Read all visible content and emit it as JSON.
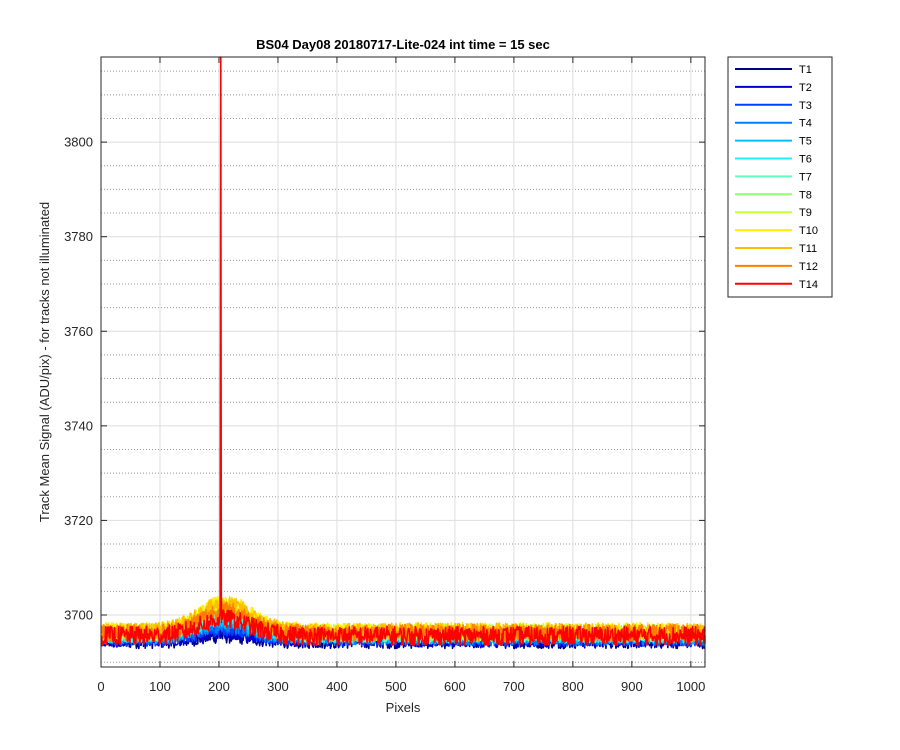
{
  "chart_data": {
    "type": "line",
    "title": "BS04 Day08 20180717-Lite-024 int time = 15 sec",
    "xlabel": "Pixels",
    "ylabel": "Track Mean Signal (ADU/pix) - for tracks not illuminated",
    "xlim": [
      0,
      1024
    ],
    "ylim": [
      3689,
      3818
    ],
    "x_ticks": [
      0,
      100,
      200,
      300,
      400,
      500,
      600,
      700,
      800,
      900,
      1000
    ],
    "y_ticks": [
      3700,
      3720,
      3740,
      3760,
      3780,
      3800
    ],
    "grid": "on (major solid, minor dotted)",
    "legend_position": "outside-right",
    "series": [
      {
        "name": "T1",
        "color": "#00008f",
        "baseline": 3694.5,
        "noise": 1.6
      },
      {
        "name": "T2",
        "color": "#0000d0",
        "baseline": 3694.8,
        "noise": 1.6
      },
      {
        "name": "T3",
        "color": "#0040ff",
        "baseline": 3695.0,
        "noise": 1.6
      },
      {
        "name": "T4",
        "color": "#0080ff",
        "baseline": 3695.2,
        "noise": 1.6
      },
      {
        "name": "T5",
        "color": "#00bfff",
        "baseline": 3695.5,
        "noise": 1.6
      },
      {
        "name": "T6",
        "color": "#20efff",
        "baseline": 3695.8,
        "noise": 1.7
      },
      {
        "name": "T7",
        "color": "#60ffc0",
        "baseline": 3696.0,
        "noise": 1.7
      },
      {
        "name": "T8",
        "color": "#90ff70",
        "baseline": 3696.2,
        "noise": 1.7
      },
      {
        "name": "T9",
        "color": "#c8ff30",
        "baseline": 3696.5,
        "noise": 1.7
      },
      {
        "name": "T10",
        "color": "#ffef00",
        "baseline": 3696.7,
        "noise": 1.7
      },
      {
        "name": "T11",
        "color": "#ffbf00",
        "baseline": 3696.6,
        "noise": 1.7
      },
      {
        "name": "T12",
        "color": "#ff8000",
        "baseline": 3696.2,
        "noise": 1.8
      },
      {
        "name": "T14",
        "color": "#ff0000",
        "baseline": 3695.6,
        "noise": 2.0,
        "spike_x": 203,
        "spike_y": 3818
      }
    ]
  }
}
